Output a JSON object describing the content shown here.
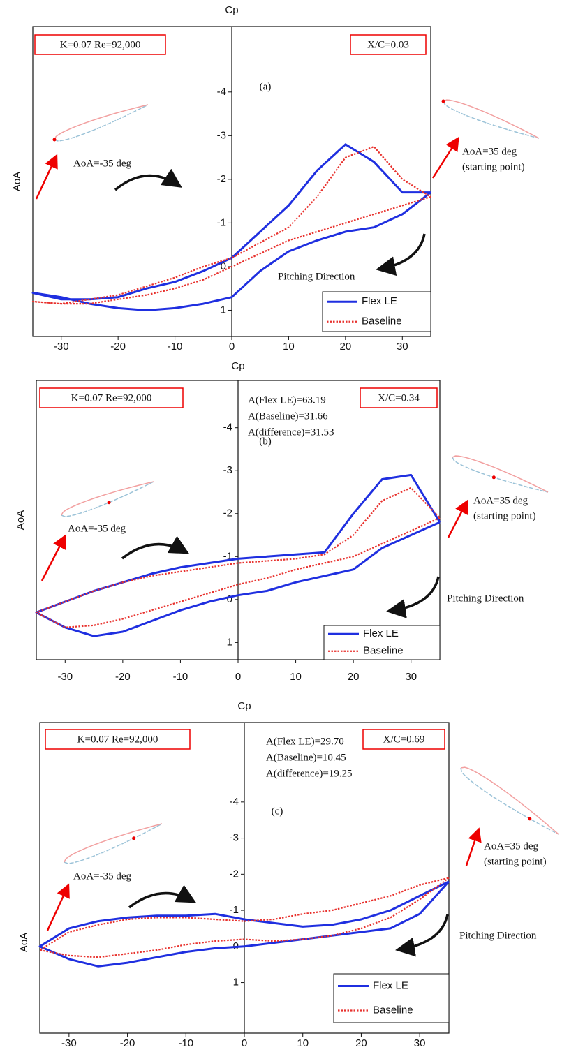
{
  "chart_data": [
    {
      "type": "line",
      "top_axis_label": "Cp",
      "left_axis_label": "AoA",
      "case_label": "K=0.07 Re=92,000",
      "location_label": "X/C=0.03",
      "panel_label": "(a)",
      "left_pose_label": "AoA=-35 deg",
      "right_pose_label": "AoA=35 deg",
      "right_pose_note": "(starting point)",
      "direction_label": "Pitching Direction",
      "x": [
        35,
        30,
        25,
        20,
        15,
        10,
        5,
        0,
        -5,
        -10,
        -15,
        -20,
        -25,
        -30,
        -35,
        -30,
        -25,
        -20,
        -15,
        -10,
        -5,
        0,
        5,
        10,
        15,
        20,
        25,
        30,
        35
      ],
      "series": [
        {
          "name": "Flex LE",
          "color": "#1f2fe0",
          "dash": false,
          "values": [
            -1.7,
            -1.2,
            -0.9,
            -0.8,
            -0.6,
            -0.35,
            0.1,
            0.7,
            0.85,
            0.95,
            1.0,
            0.95,
            0.85,
            0.7,
            0.6,
            0.75,
            0.75,
            0.7,
            0.5,
            0.35,
            0.1,
            -0.2,
            -0.8,
            -1.4,
            -2.2,
            -2.8,
            -2.4,
            -1.7,
            -1.7
          ]
        },
        {
          "name": "Baseline",
          "color": "#e8322e",
          "dash": true,
          "values": [
            -1.6,
            -1.4,
            -1.2,
            -1.0,
            -0.8,
            -0.6,
            -0.3,
            0,
            0.3,
            0.5,
            0.65,
            0.75,
            0.85,
            0.85,
            0.8,
            0.85,
            0.75,
            0.65,
            0.45,
            0.25,
            0,
            -0.2,
            -0.55,
            -0.9,
            -1.6,
            -2.5,
            -2.75,
            -2.0,
            -1.6
          ]
        }
      ],
      "xlim": [
        -35,
        35
      ],
      "xticks": [
        -30,
        -20,
        -10,
        0,
        10,
        20,
        30
      ],
      "ylim": [
        -5.5,
        1.6
      ],
      "y_inverted": true,
      "yticks": [
        -4,
        -3,
        -2,
        -1,
        0,
        1
      ],
      "legend": "lower right"
    },
    {
      "type": "line",
      "top_axis_label": "Cp",
      "left_axis_label": "AoA",
      "case_label": "K=0.07 Re=92,000",
      "location_label": "X/C=0.34",
      "panel_label": "(b)",
      "area_labels": [
        "A(Flex LE)=63.19",
        "A(Baseline)=31.66",
        "A(difference)=31.53"
      ],
      "left_pose_label": "AoA=-35 deg",
      "right_pose_label": "AoA=35 deg",
      "right_pose_note": "(starting point)",
      "direction_label": "Pitching Direction",
      "x": [
        35,
        30,
        25,
        20,
        15,
        10,
        5,
        0,
        -5,
        -10,
        -15,
        -20,
        -25,
        -30,
        -35,
        -30,
        -25,
        -20,
        -15,
        -10,
        -5,
        0,
        5,
        10,
        15,
        20,
        25,
        30,
        35
      ],
      "series": [
        {
          "name": "Flex LE",
          "color": "#1f2fe0",
          "dash": false,
          "values": [
            -1.8,
            -1.5,
            -1.2,
            -0.7,
            -0.55,
            -0.4,
            -0.2,
            -0.1,
            0.05,
            0.25,
            0.5,
            0.75,
            0.85,
            0.65,
            0.3,
            0.05,
            -0.2,
            -0.4,
            -0.6,
            -0.75,
            -0.85,
            -0.95,
            -1.0,
            -1.05,
            -1.1,
            -2.0,
            -2.8,
            -2.9,
            -1.8
          ]
        },
        {
          "name": "Baseline",
          "color": "#e8322e",
          "dash": true,
          "values": [
            -1.9,
            -1.6,
            -1.3,
            -1.0,
            -0.85,
            -0.7,
            -0.5,
            -0.35,
            -0.15,
            0.05,
            0.25,
            0.45,
            0.6,
            0.65,
            0.3,
            0.05,
            -0.2,
            -0.4,
            -0.55,
            -0.65,
            -0.75,
            -0.85,
            -0.9,
            -0.95,
            -1.05,
            -1.5,
            -2.3,
            -2.6,
            -1.9
          ]
        }
      ],
      "xlim": [
        -35,
        35
      ],
      "xticks": [
        -30,
        -20,
        -10,
        0,
        10,
        20,
        30
      ],
      "ylim": [
        -5.1,
        1.4
      ],
      "y_inverted": true,
      "yticks": [
        -4,
        -3,
        -2,
        -1,
        0,
        1
      ],
      "legend": "lower right"
    },
    {
      "type": "line",
      "top_axis_label": "Cp",
      "left_axis_label": "AoA",
      "case_label": "K=0.07 Re=92,000",
      "location_label": "X/C=0.69",
      "panel_label": "(c)",
      "area_labels": [
        "A(Flex LE)=29.70",
        "A(Baseline)=10.45",
        "A(difference)=19.25"
      ],
      "left_pose_label": "AoA=-35 deg",
      "right_pose_label": "AoA=35 deg",
      "right_pose_note": "(starting point)",
      "direction_label": "Pitching Direction",
      "x": [
        35,
        30,
        25,
        20,
        15,
        10,
        5,
        0,
        -5,
        -10,
        -15,
        -20,
        -25,
        -30,
        -35,
        -30,
        -25,
        -20,
        -15,
        -10,
        -5,
        0,
        5,
        10,
        15,
        20,
        25,
        30,
        35
      ],
      "series": [
        {
          "name": "Flex LE",
          "color": "#1f2fe0",
          "dash": false,
          "values": [
            -1.8,
            -0.9,
            -0.5,
            -0.4,
            -0.3,
            -0.2,
            -0.1,
            0.0,
            0.05,
            0.15,
            0.3,
            0.45,
            0.55,
            0.35,
            0.0,
            -0.5,
            -0.7,
            -0.8,
            -0.85,
            -0.85,
            -0.9,
            -0.75,
            -0.65,
            -0.55,
            -0.6,
            -0.75,
            -1.0,
            -1.4,
            -1.8
          ]
        },
        {
          "name": "Baseline",
          "color": "#e8322e",
          "dash": true,
          "values": [
            -1.9,
            -1.3,
            -0.8,
            -0.5,
            -0.3,
            -0.2,
            -0.15,
            -0.2,
            -0.15,
            -0.05,
            0.1,
            0.2,
            0.3,
            0.25,
            0.1,
            -0.4,
            -0.6,
            -0.75,
            -0.8,
            -0.8,
            -0.75,
            -0.7,
            -0.75,
            -0.9,
            -1.0,
            -1.2,
            -1.4,
            -1.7,
            -1.9
          ]
        }
      ],
      "xlim": [
        -35,
        35
      ],
      "xticks": [
        -30,
        -20,
        -10,
        0,
        10,
        20,
        30
      ],
      "ylim": [
        -6.2,
        2.4
      ],
      "y_inverted": true,
      "yticks": [
        -4,
        -3,
        -2,
        -1,
        0,
        1
      ],
      "legend": "lower right"
    }
  ]
}
